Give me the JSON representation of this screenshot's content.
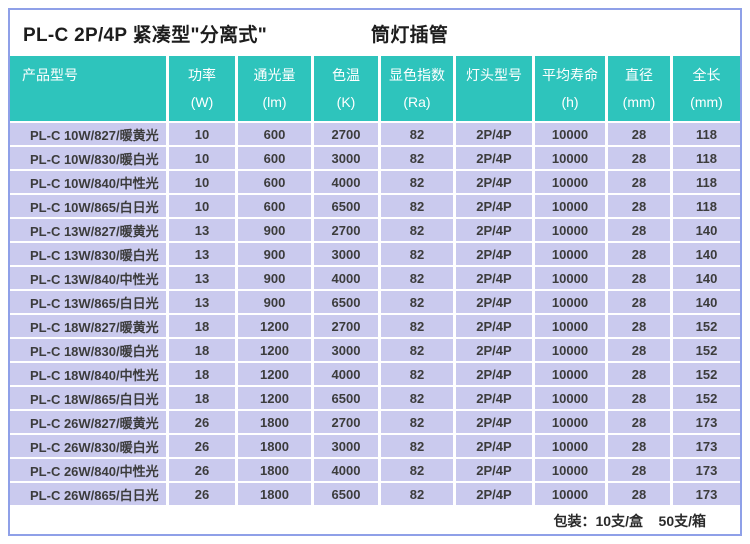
{
  "title": {
    "main": "PL-C 2P/4P 紧凑型\"分离式\"",
    "sub": "筒灯插管"
  },
  "table": {
    "columns": [
      {
        "key": "model",
        "label": "产品型号",
        "unit": ""
      },
      {
        "key": "power",
        "label": "功率",
        "unit": "(W)"
      },
      {
        "key": "flux",
        "label": "通光量",
        "unit": "(lm)"
      },
      {
        "key": "cct",
        "label": "色温",
        "unit": "(K)"
      },
      {
        "key": "cri",
        "label": "显色指数",
        "unit": "(Ra)"
      },
      {
        "key": "base",
        "label": "灯头型号",
        "unit": ""
      },
      {
        "key": "life",
        "label": "平均寿命",
        "unit": "(h)"
      },
      {
        "key": "diameter",
        "label": "直径",
        "unit": "(mm)"
      },
      {
        "key": "length",
        "label": "全长",
        "unit": "(mm)"
      }
    ],
    "rows": [
      [
        "PL-C 10W/827/暖黄光",
        "10",
        "600",
        "2700",
        "82",
        "2P/4P",
        "10000",
        "28",
        "118"
      ],
      [
        "PL-C 10W/830/暖白光",
        "10",
        "600",
        "3000",
        "82",
        "2P/4P",
        "10000",
        "28",
        "118"
      ],
      [
        "PL-C 10W/840/中性光",
        "10",
        "600",
        "4000",
        "82",
        "2P/4P",
        "10000",
        "28",
        "118"
      ],
      [
        "PL-C 10W/865/白日光",
        "10",
        "600",
        "6500",
        "82",
        "2P/4P",
        "10000",
        "28",
        "118"
      ],
      [
        "PL-C 13W/827/暖黄光",
        "13",
        "900",
        "2700",
        "82",
        "2P/4P",
        "10000",
        "28",
        "140"
      ],
      [
        "PL-C 13W/830/暖白光",
        "13",
        "900",
        "3000",
        "82",
        "2P/4P",
        "10000",
        "28",
        "140"
      ],
      [
        "PL-C 13W/840/中性光",
        "13",
        "900",
        "4000",
        "82",
        "2P/4P",
        "10000",
        "28",
        "140"
      ],
      [
        "PL-C 13W/865/白日光",
        "13",
        "900",
        "6500",
        "82",
        "2P/4P",
        "10000",
        "28",
        "140"
      ],
      [
        "PL-C 18W/827/暖黄光",
        "18",
        "1200",
        "2700",
        "82",
        "2P/4P",
        "10000",
        "28",
        "152"
      ],
      [
        "PL-C 18W/830/暖白光",
        "18",
        "1200",
        "3000",
        "82",
        "2P/4P",
        "10000",
        "28",
        "152"
      ],
      [
        "PL-C 18W/840/中性光",
        "18",
        "1200",
        "4000",
        "82",
        "2P/4P",
        "10000",
        "28",
        "152"
      ],
      [
        "PL-C 18W/865/白日光",
        "18",
        "1200",
        "6500",
        "82",
        "2P/4P",
        "10000",
        "28",
        "152"
      ],
      [
        "PL-C 26W/827/暖黄光",
        "26",
        "1800",
        "2700",
        "82",
        "2P/4P",
        "10000",
        "28",
        "173"
      ],
      [
        "PL-C 26W/830/暖白光",
        "26",
        "1800",
        "3000",
        "82",
        "2P/4P",
        "10000",
        "28",
        "173"
      ],
      [
        "PL-C 26W/840/中性光",
        "26",
        "1800",
        "4000",
        "82",
        "2P/4P",
        "10000",
        "28",
        "173"
      ],
      [
        "PL-C 26W/865/白日光",
        "26",
        "1800",
        "6500",
        "82",
        "2P/4P",
        "10000",
        "28",
        "173"
      ]
    ]
  },
  "footer": {
    "packaging": "包装：10支/盒    50支/箱"
  },
  "colors": {
    "header_bg": "#2ec4bc",
    "row_bg": "#cacaee",
    "border": "#8fa0e8",
    "header_text": "#ffffff",
    "cell_text": "#3c3c3c"
  }
}
